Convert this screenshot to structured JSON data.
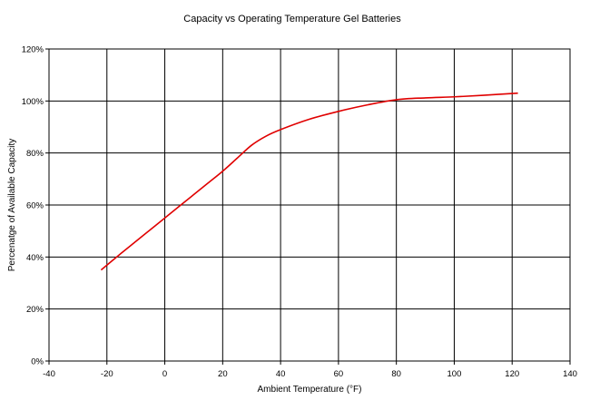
{
  "chart_data": {
    "type": "line",
    "title": "Capacity vs Operating Temperature Gel Batteries",
    "xlabel": "Ambient Temperature (°F)",
    "ylabel": "Percenatge of Available Capacity",
    "xlim": [
      -40,
      140
    ],
    "ylim": [
      0,
      120
    ],
    "x_ticks": [
      -40,
      -20,
      0,
      20,
      40,
      60,
      80,
      100,
      120,
      140
    ],
    "y_ticks": [
      0,
      20,
      40,
      60,
      80,
      100,
      120
    ],
    "y_tick_labels": [
      "0%",
      "20%",
      "40%",
      "60%",
      "80%",
      "100%",
      "120%"
    ],
    "x_tick_labels": [
      "-40",
      "-20",
      "0",
      "20",
      "40",
      "60",
      "80",
      "100",
      "120",
      "140"
    ],
    "grid": true,
    "line_color": "#e00000",
    "series": [
      {
        "x": [
          -22,
          -15,
          -10,
          -5,
          0,
          5,
          10,
          15,
          20,
          25,
          30,
          35,
          40,
          50,
          60,
          70,
          80,
          90,
          100,
          110,
          122
        ],
        "values": [
          35,
          41.5,
          46,
          50.5,
          55,
          59.5,
          64,
          68.5,
          73,
          78,
          83,
          86.5,
          89,
          93,
          96,
          98.5,
          100.5,
          101.2,
          101.6,
          102.2,
          103
        ]
      }
    ]
  }
}
